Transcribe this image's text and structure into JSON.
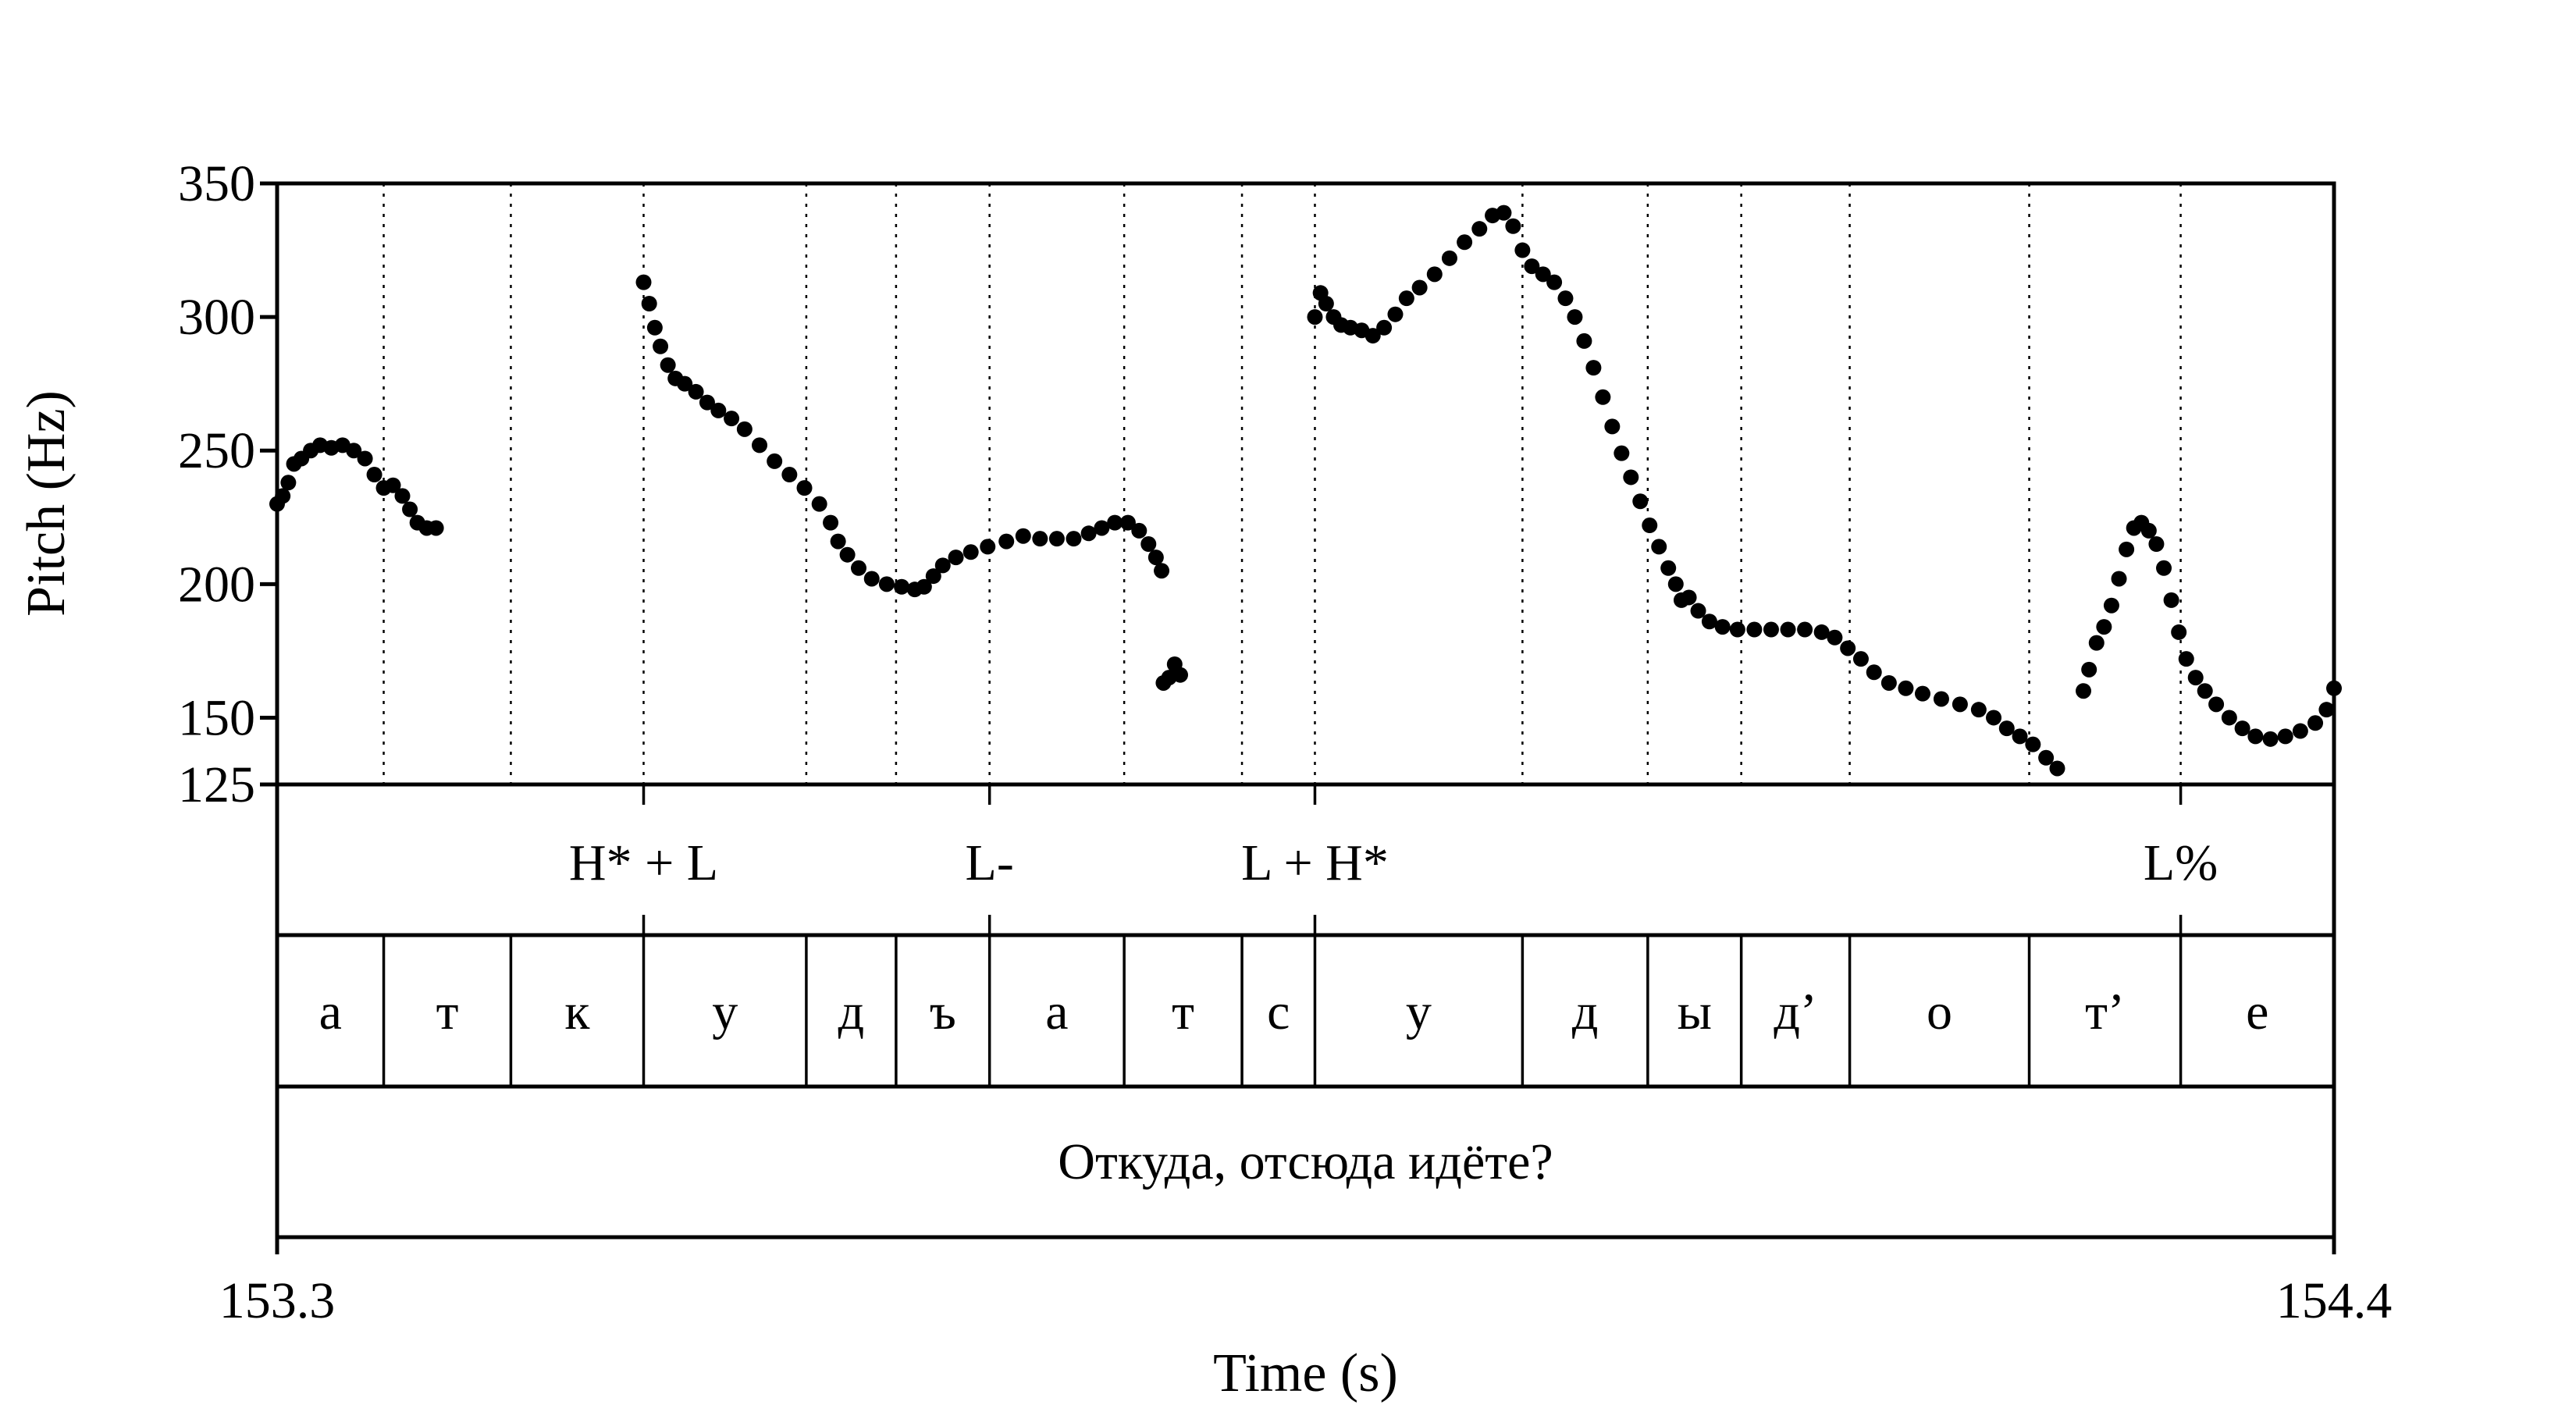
{
  "chart_data": {
    "type": "scatter",
    "title": "",
    "xlabel": "Time (s)",
    "ylabel": "Pitch (Hz)",
    "xlim": [
      153.3,
      154.4
    ],
    "ylim": [
      125,
      350
    ],
    "x_tick_labels": [
      "153.3",
      "154.4"
    ],
    "y_ticks": [
      125,
      150,
      200,
      250,
      300,
      350
    ],
    "y_tick_labels": [
      "125",
      "150",
      "200",
      "250",
      "300",
      "350"
    ],
    "series": [
      {
        "points": [
          [
            153.3,
            230
          ],
          [
            153.303,
            233
          ],
          [
            153.306,
            238
          ],
          [
            153.309,
            245
          ],
          [
            153.313,
            247
          ],
          [
            153.318,
            250
          ],
          [
            153.323,
            252
          ],
          [
            153.329,
            251
          ],
          [
            153.335,
            252
          ],
          [
            153.341,
            250
          ],
          [
            153.347,
            247
          ],
          [
            153.352,
            241
          ],
          [
            153.357,
            236
          ],
          [
            153.362,
            237
          ],
          [
            153.367,
            233
          ],
          [
            153.371,
            228
          ],
          [
            153.375,
            223
          ],
          [
            153.38,
            221
          ],
          [
            153.385,
            221
          ],
          [
            153.496,
            313
          ],
          [
            153.499,
            305
          ],
          [
            153.502,
            296
          ],
          [
            153.505,
            289
          ],
          [
            153.509,
            282
          ],
          [
            153.513,
            277
          ],
          [
            153.518,
            275
          ],
          [
            153.524,
            272
          ],
          [
            153.53,
            268
          ],
          [
            153.536,
            265
          ],
          [
            153.543,
            262
          ],
          [
            153.55,
            258
          ],
          [
            153.558,
            252
          ],
          [
            153.566,
            246
          ],
          [
            153.574,
            241
          ],
          [
            153.582,
            236
          ],
          [
            153.59,
            230
          ],
          [
            153.596,
            223
          ],
          [
            153.6,
            216
          ],
          [
            153.605,
            211
          ],
          [
            153.611,
            206
          ],
          [
            153.618,
            202
          ],
          [
            153.626,
            200
          ],
          [
            153.634,
            199
          ],
          [
            153.641,
            198
          ],
          [
            153.646,
            199
          ],
          [
            153.651,
            203
          ],
          [
            153.656,
            207
          ],
          [
            153.663,
            210
          ],
          [
            153.671,
            212
          ],
          [
            153.68,
            214
          ],
          [
            153.69,
            216
          ],
          [
            153.699,
            218
          ],
          [
            153.708,
            217
          ],
          [
            153.717,
            217
          ],
          [
            153.726,
            217
          ],
          [
            153.734,
            219
          ],
          [
            153.741,
            221
          ],
          [
            153.748,
            223
          ],
          [
            153.755,
            223
          ],
          [
            153.761,
            220
          ],
          [
            153.766,
            215
          ],
          [
            153.77,
            210
          ],
          [
            153.773,
            205
          ],
          [
            153.774,
            163
          ],
          [
            153.777,
            165
          ],
          [
            153.78,
            170
          ],
          [
            153.783,
            166
          ],
          [
            153.855,
            300
          ],
          [
            153.858,
            309
          ],
          [
            153.861,
            305
          ],
          [
            153.865,
            300
          ],
          [
            153.869,
            297
          ],
          [
            153.874,
            296
          ],
          [
            153.88,
            295
          ],
          [
            153.886,
            293
          ],
          [
            153.892,
            296
          ],
          [
            153.898,
            301
          ],
          [
            153.904,
            307
          ],
          [
            153.911,
            311
          ],
          [
            153.919,
            316
          ],
          [
            153.927,
            322
          ],
          [
            153.935,
            328
          ],
          [
            153.943,
            333
          ],
          [
            153.95,
            338
          ],
          [
            153.956,
            339
          ],
          [
            153.961,
            334
          ],
          [
            153.966,
            325
          ],
          [
            153.971,
            319
          ],
          [
            153.977,
            316
          ],
          [
            153.983,
            313
          ],
          [
            153.989,
            307
          ],
          [
            153.994,
            300
          ],
          [
            153.999,
            291
          ],
          [
            154.004,
            281
          ],
          [
            154.009,
            270
          ],
          [
            154.014,
            259
          ],
          [
            154.019,
            249
          ],
          [
            154.024,
            240
          ],
          [
            154.029,
            231
          ],
          [
            154.034,
            222
          ],
          [
            154.039,
            214
          ],
          [
            154.044,
            206
          ],
          [
            154.048,
            200
          ],
          [
            154.051,
            194
          ],
          [
            154.055,
            195
          ],
          [
            154.06,
            190
          ],
          [
            154.066,
            186
          ],
          [
            154.073,
            184
          ],
          [
            154.081,
            183
          ],
          [
            154.09,
            183
          ],
          [
            154.099,
            183
          ],
          [
            154.108,
            183
          ],
          [
            154.117,
            183
          ],
          [
            154.126,
            182
          ],
          [
            154.133,
            180
          ],
          [
            154.14,
            176
          ],
          [
            154.147,
            172
          ],
          [
            154.154,
            167
          ],
          [
            154.162,
            163
          ],
          [
            154.171,
            161
          ],
          [
            154.18,
            159
          ],
          [
            154.19,
            157
          ],
          [
            154.2,
            155
          ],
          [
            154.21,
            153
          ],
          [
            154.218,
            150
          ],
          [
            154.225,
            146
          ],
          [
            154.232,
            143
          ],
          [
            154.239,
            140
          ],
          [
            154.246,
            135
          ],
          [
            154.252,
            131
          ],
          [
            154.266,
            160
          ],
          [
            154.269,
            168
          ],
          [
            154.273,
            178
          ],
          [
            154.277,
            184
          ],
          [
            154.281,
            192
          ],
          [
            154.285,
            202
          ],
          [
            154.289,
            213
          ],
          [
            154.293,
            221
          ],
          [
            154.297,
            223
          ],
          [
            154.301,
            220
          ],
          [
            154.305,
            215
          ],
          [
            154.309,
            206
          ],
          [
            154.313,
            194
          ],
          [
            154.317,
            182
          ],
          [
            154.321,
            172
          ],
          [
            154.326,
            165
          ],
          [
            154.331,
            160
          ],
          [
            154.337,
            155
          ],
          [
            154.344,
            150
          ],
          [
            154.351,
            146
          ],
          [
            154.358,
            143
          ],
          [
            154.366,
            142
          ],
          [
            154.374,
            143
          ],
          [
            154.382,
            145
          ],
          [
            154.39,
            148
          ],
          [
            154.396,
            153
          ],
          [
            154.4,
            161
          ]
        ]
      }
    ],
    "tiers": {
      "tones": [
        {
          "label": "H* + L",
          "time": 153.496
        },
        {
          "label": "L-",
          "time": 153.681
        },
        {
          "label": "L + H*",
          "time": 153.855
        },
        {
          "label": "L%",
          "time": 154.318
        }
      ],
      "segments": [
        {
          "label": "а",
          "start": 153.3,
          "end": 153.357
        },
        {
          "label": "т",
          "start": 153.357,
          "end": 153.425
        },
        {
          "label": "к",
          "start": 153.425,
          "end": 153.496
        },
        {
          "label": "у",
          "start": 153.496,
          "end": 153.583
        },
        {
          "label": "д",
          "start": 153.583,
          "end": 153.631
        },
        {
          "label": "ъ",
          "start": 153.631,
          "end": 153.681
        },
        {
          "label": "а",
          "start": 153.681,
          "end": 153.753
        },
        {
          "label": "т",
          "start": 153.753,
          "end": 153.816
        },
        {
          "label": "с",
          "start": 153.816,
          "end": 153.855
        },
        {
          "label": "у",
          "start": 153.855,
          "end": 153.966
        },
        {
          "label": "д",
          "start": 153.966,
          "end": 154.033
        },
        {
          "label": "ы",
          "start": 154.033,
          "end": 154.083
        },
        {
          "label": "д’",
          "start": 154.083,
          "end": 154.141
        },
        {
          "label": "о",
          "start": 154.141,
          "end": 154.237
        },
        {
          "label": "т’",
          "start": 154.237,
          "end": 154.318
        },
        {
          "label": "е",
          "start": 154.318,
          "end": 154.4
        }
      ],
      "sentence": "Откуда, отсюда идёте?"
    }
  }
}
